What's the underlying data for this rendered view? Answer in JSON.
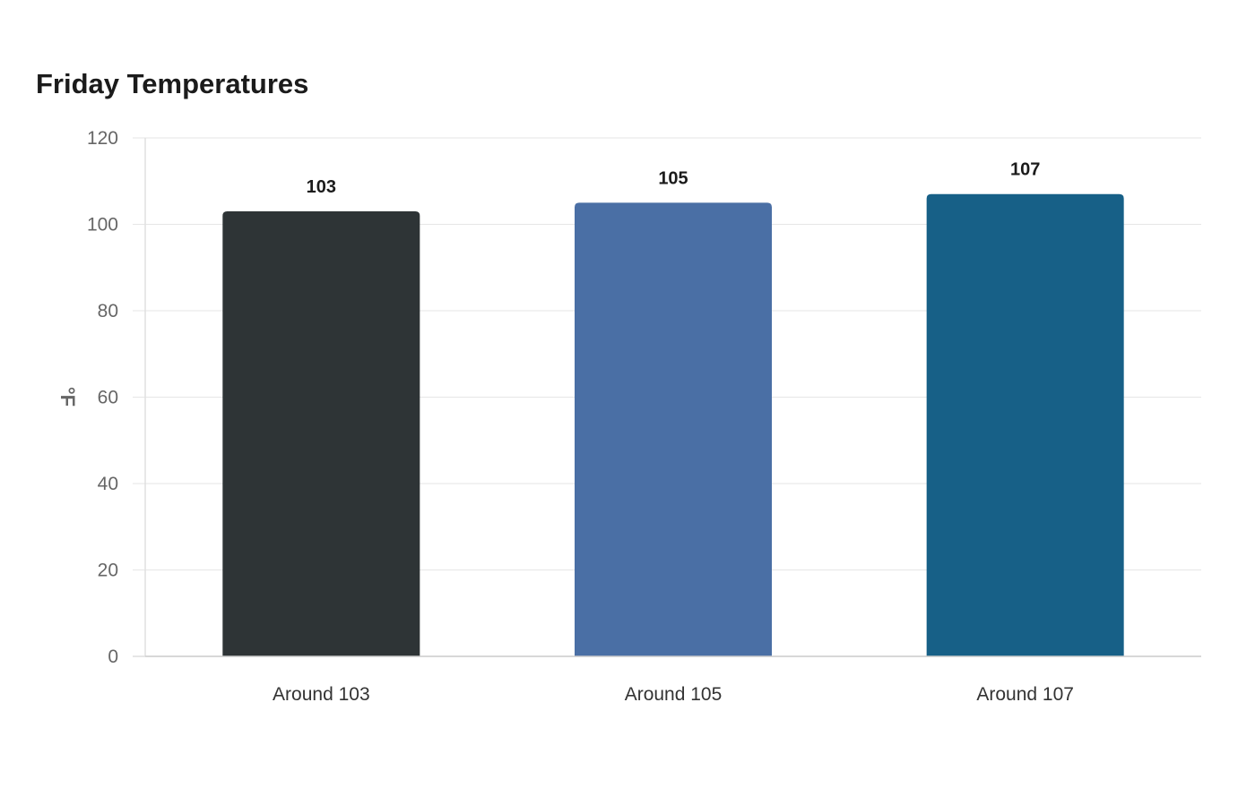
{
  "chart_data": {
    "type": "bar",
    "title": "Friday Temperatures",
    "xlabel": "",
    "ylabel": "°F",
    "categories": [
      "Around 103",
      "Around 105",
      "Around 107"
    ],
    "values": [
      103,
      105,
      107
    ],
    "data_labels": [
      "103",
      "105",
      "107"
    ],
    "colors": [
      "#2e3436",
      "#4a6fa5",
      "#176087"
    ],
    "ylim": [
      0,
      120
    ],
    "yticks": [
      0,
      20,
      40,
      60,
      80,
      100,
      120
    ],
    "grid": true,
    "legend": "none"
  }
}
